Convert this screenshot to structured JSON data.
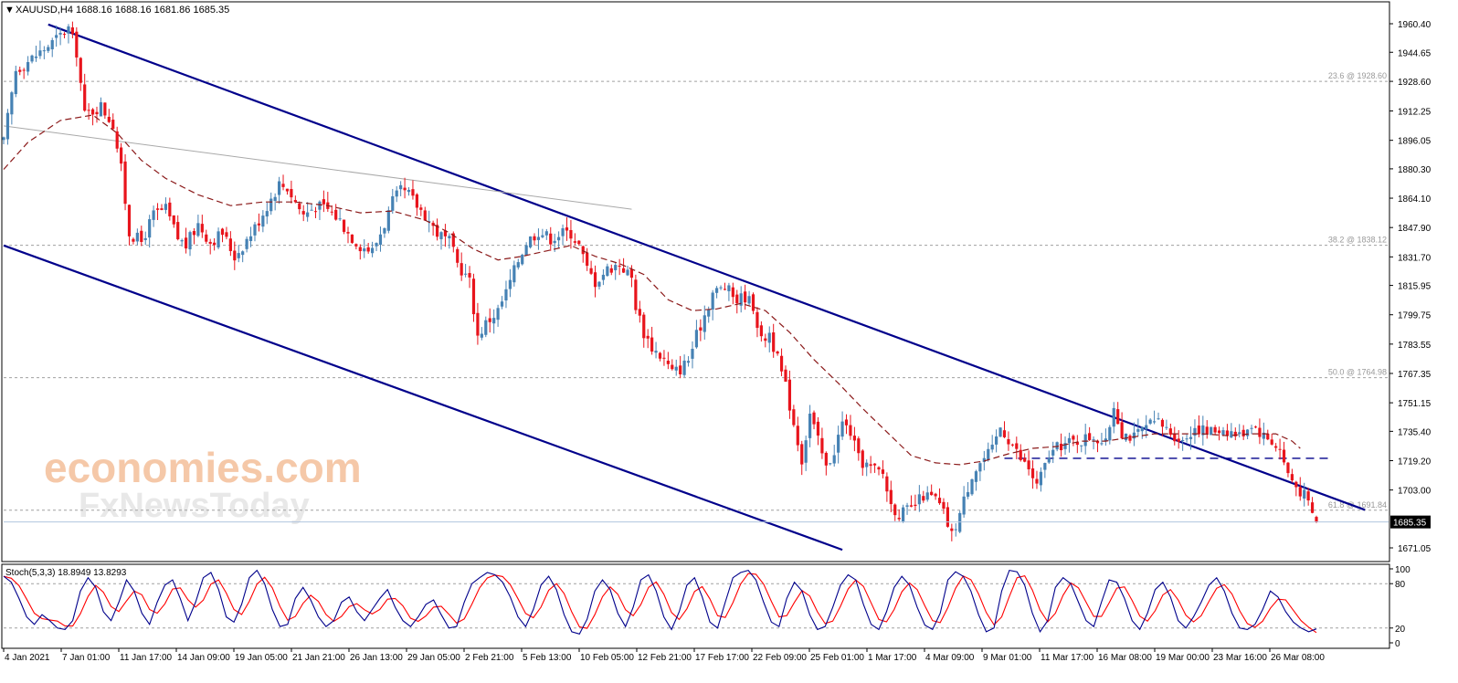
{
  "header": {
    "symbol_line": "XAUUSD,H4  1688.16 1688.16 1681.86 1685.35",
    "arrow": "▼"
  },
  "watermark": {
    "line1": "economies.com",
    "line2": "FxNewsToday"
  },
  "colors": {
    "bull": "#4682b4",
    "bear": "#e8141c",
    "channel": "#00008b",
    "ma": "#8b1a1a",
    "trend": "#a9a9a9",
    "stoch_main": "#00008b",
    "stoch_signal": "#ff0000",
    "grid_level": "#a0a0a0",
    "price_tag_bg": "#000000"
  },
  "chart_data": {
    "type": "candlestick",
    "symbol": "XAUUSD",
    "timeframe": "H4",
    "title": "XAUUSD,H4  1688.16 1688.16 1681.86 1685.35",
    "last_bar": {
      "open": 1688.16,
      "high": 1688.16,
      "low": 1681.86,
      "close": 1685.35
    },
    "current_price_label": "1685.35",
    "ylim": [
      1664,
      1972
    ],
    "y_ticks": [
      "1960.40",
      "1944.65",
      "1928.60",
      "1912.25",
      "1896.05",
      "1880.30",
      "1864.10",
      "1847.90",
      "1831.70",
      "1815.95",
      "1799.75",
      "1783.55",
      "1767.35",
      "1751.15",
      "1735.40",
      "1719.20",
      "1703.00",
      "1671.05"
    ],
    "x_ticks": [
      "4 Jan 2021",
      "7 Jan 01:00",
      "11 Jan 17:00",
      "14 Jan 09:00",
      "19 Jan 05:00",
      "21 Jan 21:00",
      "26 Jan 13:00",
      "29 Jan 05:00",
      "2 Feb 21:00",
      "5 Feb 13:00",
      "10 Feb 05:00",
      "12 Feb 21:00",
      "17 Feb 17:00",
      "22 Feb 09:00",
      "25 Feb 01:00",
      "1 Mar 17:00",
      "4 Mar 09:00",
      "9 Mar 01:00",
      "11 Mar 17:00",
      "16 Mar 08:00",
      "19 Mar 00:00",
      "23 Mar 16:00",
      "26 Mar 08:00"
    ],
    "fibonacci_levels": [
      {
        "label": "23.6 @ 1928.60",
        "value": 1928.6
      },
      {
        "label": "38.2 @ 1838.12",
        "value": 1838.12
      },
      {
        "label": "50.0 @ 1764.98",
        "value": 1764.98
      },
      {
        "label": "61.8 @ 1691.84",
        "value": 1691.84
      }
    ],
    "horizontal_support": 1720.5,
    "price_path": [
      [
        0,
        1895
      ],
      [
        3,
        1935
      ],
      [
        8,
        1943
      ],
      [
        12,
        1950
      ],
      [
        16,
        1958
      ],
      [
        18,
        1945
      ],
      [
        20,
        1910
      ],
      [
        24,
        1915
      ],
      [
        27,
        1905
      ],
      [
        29,
        1880
      ],
      [
        31,
        1845
      ],
      [
        34,
        1840
      ],
      [
        37,
        1855
      ],
      [
        40,
        1858
      ],
      [
        43,
        1842
      ],
      [
        45,
        1838
      ],
      [
        48,
        1850
      ],
      [
        51,
        1840
      ],
      [
        54,
        1845
      ],
      [
        57,
        1832
      ],
      [
        59,
        1838
      ],
      [
        62,
        1848
      ],
      [
        65,
        1860
      ],
      [
        68,
        1872
      ],
      [
        70,
        1870
      ],
      [
        72,
        1862
      ],
      [
        74,
        1855
      ],
      [
        77,
        1860
      ],
      [
        80,
        1858
      ],
      [
        83,
        1852
      ],
      [
        85,
        1845
      ],
      [
        88,
        1838
      ],
      [
        91,
        1835
      ],
      [
        94,
        1850
      ],
      [
        96,
        1862
      ],
      [
        98,
        1868
      ],
      [
        100,
        1866
      ],
      [
        102,
        1860
      ],
      [
        104,
        1855
      ],
      [
        107,
        1845
      ],
      [
        110,
        1840
      ],
      [
        112,
        1828
      ],
      [
        115,
        1818
      ],
      [
        117,
        1788
      ],
      [
        119,
        1795
      ],
      [
        122,
        1802
      ],
      [
        124,
        1812
      ],
      [
        127,
        1830
      ],
      [
        129,
        1840
      ],
      [
        132,
        1846
      ],
      [
        135,
        1842
      ],
      [
        138,
        1845
      ],
      [
        140,
        1845
      ],
      [
        142,
        1838
      ],
      [
        144,
        1825
      ],
      [
        146,
        1818
      ],
      [
        149,
        1825
      ],
      [
        152,
        1828
      ],
      [
        155,
        1820
      ],
      [
        156,
        1805
      ],
      [
        158,
        1790
      ],
      [
        160,
        1782
      ],
      [
        163,
        1775
      ],
      [
        165,
        1768
      ],
      [
        167,
        1770
      ],
      [
        169,
        1775
      ],
      [
        171,
        1788
      ],
      [
        173,
        1800
      ],
      [
        175,
        1812
      ],
      [
        178,
        1815
      ],
      [
        181,
        1808
      ],
      [
        183,
        1810
      ],
      [
        185,
        1805
      ],
      [
        187,
        1785
      ],
      [
        189,
        1790
      ],
      [
        191,
        1775
      ],
      [
        193,
        1760
      ],
      [
        195,
        1740
      ],
      [
        197,
        1720
      ],
      [
        199,
        1745
      ],
      [
        201,
        1730
      ],
      [
        203,
        1715
      ],
      [
        205,
        1725
      ],
      [
        207,
        1740
      ],
      [
        209,
        1735
      ],
      [
        211,
        1720
      ],
      [
        214,
        1715
      ],
      [
        217,
        1712
      ],
      [
        219,
        1695
      ],
      [
        221,
        1690
      ],
      [
        224,
        1692
      ],
      [
        227,
        1700
      ],
      [
        230,
        1698
      ],
      [
        232,
        1690
      ],
      [
        234,
        1678
      ],
      [
        236,
        1690
      ],
      [
        239,
        1712
      ],
      [
        241,
        1718
      ],
      [
        244,
        1725
      ],
      [
        246,
        1738
      ],
      [
        249,
        1728
      ],
      [
        251,
        1720
      ],
      [
        253,
        1715
      ],
      [
        255,
        1705
      ],
      [
        258,
        1722
      ],
      [
        261,
        1728
      ],
      [
        265,
        1730
      ],
      [
        269,
        1733
      ],
      [
        272,
        1728
      ],
      [
        274,
        1750
      ],
      [
        276,
        1735
      ],
      [
        279,
        1732
      ],
      [
        282,
        1738
      ],
      [
        285,
        1740
      ],
      [
        288,
        1735
      ],
      [
        291,
        1730
      ],
      [
        294,
        1738
      ],
      [
        297,
        1735
      ],
      [
        301,
        1737
      ],
      [
        305,
        1733
      ],
      [
        308,
        1740
      ],
      [
        311,
        1733
      ],
      [
        313,
        1730
      ],
      [
        315,
        1725
      ],
      [
        317,
        1712
      ],
      [
        319,
        1705
      ],
      [
        321,
        1700
      ],
      [
        323,
        1690
      ],
      [
        324,
        1685.35
      ]
    ],
    "moving_average": [
      [
        0,
        1880
      ],
      [
        6,
        1895
      ],
      [
        14,
        1907
      ],
      [
        22,
        1910
      ],
      [
        28,
        1900
      ],
      [
        34,
        1885
      ],
      [
        40,
        1875
      ],
      [
        48,
        1866
      ],
      [
        56,
        1860
      ],
      [
        64,
        1862
      ],
      [
        72,
        1862
      ],
      [
        80,
        1860
      ],
      [
        88,
        1856
      ],
      [
        96,
        1857
      ],
      [
        104,
        1852
      ],
      [
        110,
        1845
      ],
      [
        116,
        1836
      ],
      [
        122,
        1830
      ],
      [
        128,
        1832
      ],
      [
        134,
        1835
      ],
      [
        140,
        1838
      ],
      [
        146,
        1832
      ],
      [
        152,
        1828
      ],
      [
        158,
        1822
      ],
      [
        164,
        1808
      ],
      [
        170,
        1802
      ],
      [
        176,
        1803
      ],
      [
        182,
        1806
      ],
      [
        188,
        1802
      ],
      [
        194,
        1790
      ],
      [
        200,
        1775
      ],
      [
        206,
        1762
      ],
      [
        212,
        1748
      ],
      [
        218,
        1735
      ],
      [
        224,
        1722
      ],
      [
        230,
        1718
      ],
      [
        236,
        1717
      ],
      [
        242,
        1719
      ],
      [
        248,
        1723
      ],
      [
        254,
        1726
      ],
      [
        260,
        1727
      ],
      [
        266,
        1730
      ],
      [
        272,
        1730
      ],
      [
        278,
        1732
      ],
      [
        284,
        1734
      ],
      [
        290,
        1734
      ],
      [
        296,
        1734
      ],
      [
        302,
        1733
      ],
      [
        308,
        1734
      ],
      [
        314,
        1734
      ],
      [
        318,
        1730
      ],
      [
        320,
        1726
      ]
    ],
    "trendlines": [
      {
        "name": "upper-channel",
        "from": [
          11,
          1960
        ],
        "to": [
          336,
          1692
        ]
      },
      {
        "name": "lower-channel",
        "from": [
          0,
          1838
        ],
        "to": [
          207,
          1670
        ]
      },
      {
        "name": "grey-trendline",
        "from": [
          0,
          1904
        ],
        "to": [
          155,
          1858
        ]
      }
    ],
    "stochastic": {
      "label": "Stoch(5,3,3) 18.8949 13.8293",
      "params": "5,3,3",
      "main": 18.8949,
      "signal": 13.8293,
      "levels": [
        80,
        20
      ],
      "y_ticks": [
        "100",
        "80",
        "20",
        "0"
      ],
      "main_series": [
        90,
        82,
        60,
        35,
        25,
        38,
        30,
        20,
        18,
        30,
        70,
        88,
        75,
        42,
        30,
        55,
        85,
        70,
        40,
        25,
        55,
        78,
        85,
        60,
        30,
        55,
        88,
        95,
        72,
        35,
        28,
        52,
        88,
        98,
        80,
        45,
        22,
        25,
        60,
        75,
        58,
        35,
        22,
        30,
        55,
        62,
        42,
        30,
        45,
        60,
        72,
        48,
        30,
        22,
        35,
        52,
        58,
        38,
        20,
        22,
        55,
        80,
        88,
        95,
        92,
        82,
        62,
        35,
        22,
        45,
        78,
        90,
        72,
        38,
        15,
        12,
        32,
        70,
        85,
        72,
        40,
        22,
        48,
        85,
        92,
        70,
        35,
        18,
        42,
        78,
        88,
        62,
        28,
        20,
        55,
        88,
        95,
        98,
        85,
        55,
        28,
        22,
        60,
        82,
        70,
        38,
        18,
        22,
        48,
        78,
        92,
        85,
        52,
        25,
        18,
        42,
        75,
        90,
        78,
        48,
        24,
        18,
        40,
        85,
        96,
        90,
        70,
        38,
        15,
        20,
        70,
        98,
        96,
        78,
        40,
        15,
        30,
        75,
        88,
        80,
        55,
        30,
        22,
        55,
        85,
        82,
        60,
        30,
        18,
        40,
        72,
        82,
        62,
        30,
        20,
        35,
        55,
        78,
        88,
        70,
        40,
        20,
        18,
        25,
        45,
        70,
        62,
        42,
        28,
        20,
        15,
        18
      ]
    }
  }
}
